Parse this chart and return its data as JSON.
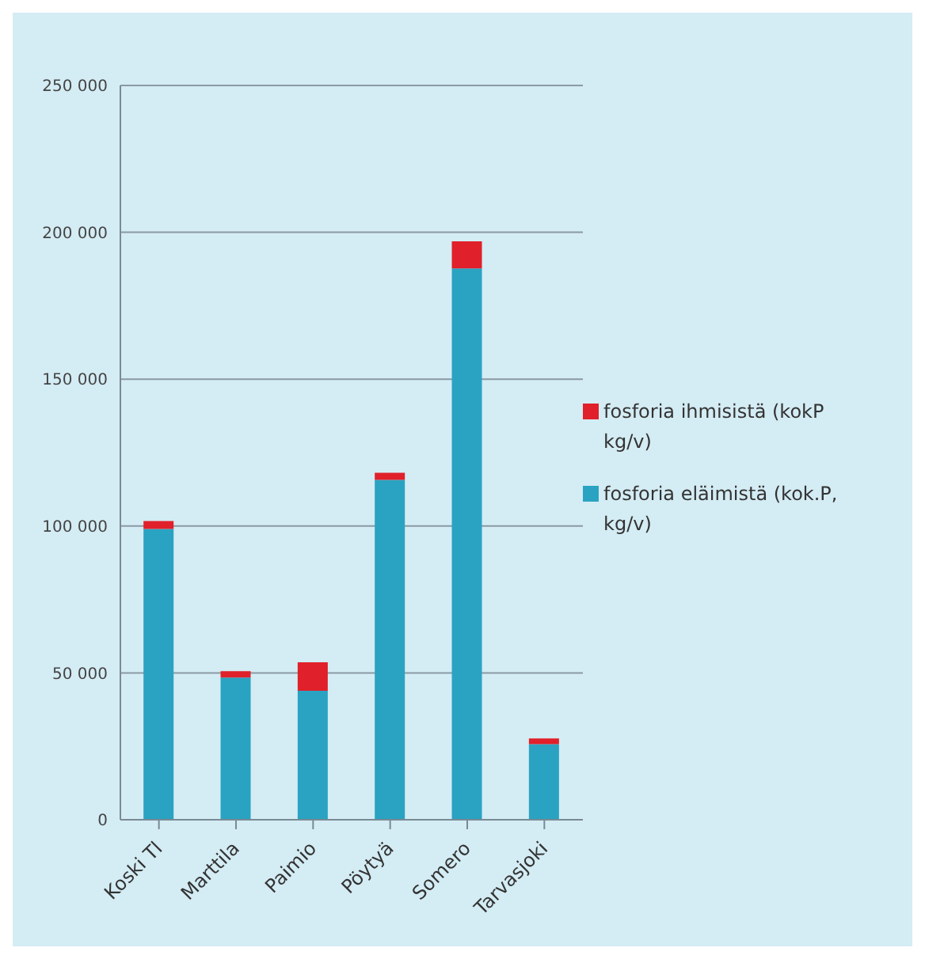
{
  "chart_data": {
    "type": "bar",
    "stacked": true,
    "categories": [
      "Koski Tl",
      "Marttila",
      "Paimio",
      "Pöytyä",
      "Somero",
      "Tarvasjoki"
    ],
    "series": [
      {
        "name": "fosforia eläimistä (kok.P, kg/v)",
        "color": "#2aa3c2",
        "values": [
          99000,
          48400,
          43900,
          115700,
          187700,
          25700
        ]
      },
      {
        "name": "fosforia ihmisistä (kokP kg/v)",
        "color": "#e0202a",
        "values": [
          2700,
          2200,
          9700,
          2400,
          9200,
          2000
        ]
      }
    ],
    "ylim": [
      0,
      250000
    ],
    "yticks": [
      {
        "value": 0,
        "label": "0"
      },
      {
        "value": 50000,
        "label": "50 000"
      },
      {
        "value": 100000,
        "label": "100 000"
      },
      {
        "value": 150000,
        "label": "150 000"
      },
      {
        "value": 200000,
        "label": "200 000"
      },
      {
        "value": 250000,
        "label": "250 000"
      }
    ],
    "grid": "y",
    "legend": "right"
  }
}
